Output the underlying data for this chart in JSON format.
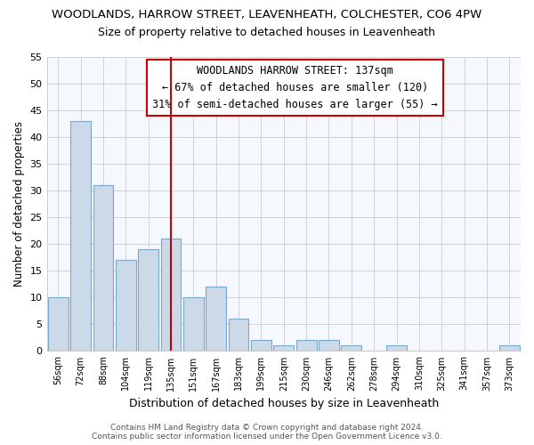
{
  "title": "WOODLANDS, HARROW STREET, LEAVENHEATH, COLCHESTER, CO6 4PW",
  "subtitle": "Size of property relative to detached houses in Leavenheath",
  "xlabel": "Distribution of detached houses by size in Leavenheath",
  "ylabel": "Number of detached properties",
  "categories": [
    "56sqm",
    "72sqm",
    "88sqm",
    "104sqm",
    "119sqm",
    "135sqm",
    "151sqm",
    "167sqm",
    "183sqm",
    "199sqm",
    "215sqm",
    "230sqm",
    "246sqm",
    "262sqm",
    "278sqm",
    "294sqm",
    "310sqm",
    "325sqm",
    "341sqm",
    "357sqm",
    "373sqm"
  ],
  "values": [
    10,
    43,
    31,
    17,
    19,
    21,
    10,
    12,
    6,
    2,
    1,
    2,
    2,
    1,
    0,
    1,
    0,
    0,
    0,
    0,
    1
  ],
  "bar_color": "#ccd9e8",
  "bar_edge_color": "#7aaacb",
  "vline_x_index": 5,
  "annotation_line1": "WOODLANDS HARROW STREET: 137sqm",
  "annotation_line2": "← 67% of detached houses are smaller (120)",
  "annotation_line3": "31% of semi-detached houses are larger (55) →",
  "annotation_box_color": "#ffffff",
  "annotation_box_edge": "#cc0000",
  "vline_color": "#cc0000",
  "ylim": [
    0,
    55
  ],
  "yticks": [
    0,
    5,
    10,
    15,
    20,
    25,
    30,
    35,
    40,
    45,
    50,
    55
  ],
  "grid_color": "#cccccc",
  "bg_color": "#ffffff",
  "plot_bg_color": "#f5f8fc",
  "title_fontsize": 9.5,
  "subtitle_fontsize": 9,
  "footer": "Contains HM Land Registry data © Crown copyright and database right 2024.\nContains public sector information licensed under the Open Government Licence v3.0."
}
